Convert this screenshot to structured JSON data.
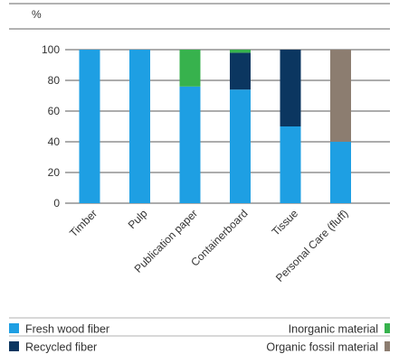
{
  "chart_data": {
    "type": "bar",
    "stacked": true,
    "unit_label": "%",
    "xlabel": "",
    "ylabel": "",
    "ylim": [
      0,
      100
    ],
    "yticks": [
      0,
      20,
      40,
      60,
      80,
      100
    ],
    "grid": true,
    "legend_position": "bottom",
    "categories": [
      "Timber",
      "Pulp",
      "Publication paper",
      "Containerboard",
      "Tissue",
      "Personal Care (fluff)"
    ],
    "series": [
      {
        "name": "Fresh wood fiber",
        "color": "#1e9fe3",
        "values": [
          100,
          100,
          76,
          74,
          50,
          40
        ]
      },
      {
        "name": "Recycled fiber",
        "color": "#0b3660",
        "values": [
          0,
          0,
          0,
          24,
          50,
          0
        ]
      },
      {
        "name": "Inorganic material",
        "color": "#37b24d",
        "values": [
          0,
          0,
          24,
          2,
          0,
          0
        ]
      },
      {
        "name": "Organic fossil material",
        "color": "#8c7d70",
        "values": [
          0,
          0,
          0,
          0,
          0,
          60
        ]
      }
    ]
  }
}
